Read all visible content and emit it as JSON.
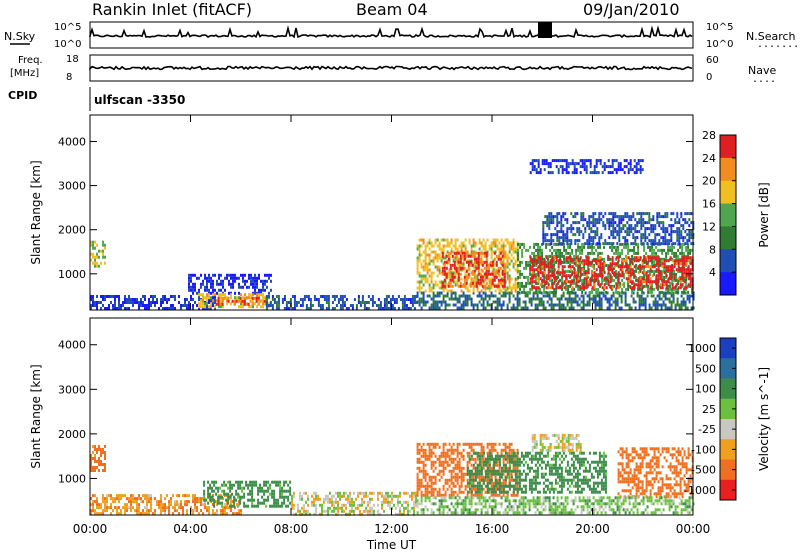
{
  "header": {
    "site": "Rankin Inlet (fitACF)",
    "beam": "Beam 04",
    "date": "09/Jan/2010"
  },
  "top_panels": {
    "nsky_label": "N.Sky",
    "nsearch_label": "N.Search",
    "nsearch_dots": "........",
    "counts_ticks_left": [
      "10^5",
      "10^0"
    ],
    "counts_ticks_right": [
      "10^5",
      "10^0"
    ],
    "freq_label_1": "Freq.",
    "freq_label_2": "[MHz]",
    "freq_ticks_left": [
      "18",
      "8"
    ],
    "nave_label": "Nave",
    "nave_dots": "....",
    "nave_ticks_right": [
      "60",
      "0"
    ],
    "cpid_label": "CPID",
    "cpid_value": "ulfscan -3350"
  },
  "chart_data": [
    {
      "type": "heatmap",
      "title": "",
      "xlabel": "Time UT",
      "ylabel": "Slant Range [km]",
      "x_ticks": [
        "00:00",
        "04:00",
        "08:00",
        "12:00",
        "16:00",
        "20:00",
        "00:00"
      ],
      "xlim_hours": [
        0,
        24
      ],
      "y_ticks": [
        "1000",
        "2000",
        "3000",
        "4000"
      ],
      "ylim": [
        180,
        4600
      ],
      "colorbar_label": "Power [dB]",
      "colorbar_ticks": [
        "4",
        "8",
        "12",
        "16",
        "20",
        "24",
        "28"
      ],
      "colorbar_colors": [
        "#1a1aff",
        "#1f4fb4",
        "#2e7d32",
        "#4fa84f",
        "#f0c020",
        "#f08c20",
        "#e02020"
      ],
      "regions": [
        {
          "t0": 0.0,
          "t1": 0.6,
          "r0": 1150,
          "r1": 1750,
          "value": 18
        },
        {
          "t0": 0.0,
          "t1": 5.0,
          "r0": 200,
          "r1": 520,
          "value": 6
        },
        {
          "t0": 3.9,
          "t1": 7.2,
          "r0": 550,
          "r1": 1000,
          "value": 5
        },
        {
          "t0": 4.3,
          "t1": 7.1,
          "r0": 250,
          "r1": 560,
          "value": 20
        },
        {
          "t0": 5.0,
          "t1": 7.0,
          "r0": 300,
          "r1": 480,
          "value": 26
        },
        {
          "t0": 7.0,
          "t1": 13.0,
          "r0": 200,
          "r1": 520,
          "value": 8
        },
        {
          "t0": 13.0,
          "t1": 24.0,
          "r0": 200,
          "r1": 600,
          "value": 10
        },
        {
          "t0": 13.0,
          "t1": 17.0,
          "r0": 600,
          "r1": 1800,
          "value": 20
        },
        {
          "t0": 14.0,
          "t1": 16.5,
          "r0": 700,
          "r1": 1500,
          "value": 27
        },
        {
          "t0": 17.0,
          "t1": 24.0,
          "r0": 600,
          "r1": 1700,
          "value": 14
        },
        {
          "t0": 17.5,
          "t1": 24.0,
          "r0": 700,
          "r1": 1400,
          "value": 28
        },
        {
          "t0": 18.0,
          "t1": 24.0,
          "r0": 1700,
          "r1": 2400,
          "value": 8
        },
        {
          "t0": 17.5,
          "t1": 22.0,
          "r0": 3300,
          "r1": 3600,
          "value": 5
        }
      ]
    },
    {
      "type": "heatmap",
      "title": "",
      "xlabel": "Time UT",
      "ylabel": "Slant Range [km]",
      "x_ticks": [
        "00:00",
        "04:00",
        "08:00",
        "12:00",
        "16:00",
        "20:00",
        "00:00"
      ],
      "xlim_hours": [
        0,
        24
      ],
      "y_ticks": [
        "1000",
        "2000",
        "3000",
        "4000"
      ],
      "ylim": [
        180,
        4600
      ],
      "colorbar_label": "Velocity [m s^-1]",
      "colorbar_ticks": [
        "1000",
        "500",
        "100",
        "25",
        "-25",
        "-100",
        "-500",
        "-1000"
      ],
      "colorbar_colors": [
        "#1a3fbf",
        "#2b6f9f",
        "#3c8c4a",
        "#6cc040",
        "#c8c8c0",
        "#f0a020",
        "#f07020",
        "#e82020"
      ],
      "regions": [
        {
          "t0": 0.0,
          "t1": 0.6,
          "r0": 1150,
          "r1": 1750,
          "value": -150
        },
        {
          "t0": 0.0,
          "t1": 6.0,
          "r0": 200,
          "r1": 650,
          "value": -80
        },
        {
          "t0": 4.5,
          "t1": 8.0,
          "r0": 400,
          "r1": 950,
          "value": 150
        },
        {
          "t0": 8.0,
          "t1": 13.0,
          "r0": 200,
          "r1": 700,
          "value": 0
        },
        {
          "t0": 13.0,
          "t1": 17.0,
          "r0": 600,
          "r1": 1800,
          "value": -200
        },
        {
          "t0": 15.0,
          "t1": 20.5,
          "r0": 700,
          "r1": 1600,
          "value": 150
        },
        {
          "t0": 17.5,
          "t1": 19.5,
          "r0": 1600,
          "r1": 2000,
          "value": 0
        },
        {
          "t0": 21.0,
          "t1": 24.0,
          "r0": 600,
          "r1": 1700,
          "value": -200
        },
        {
          "t0": 13.0,
          "t1": 24.0,
          "r0": 200,
          "r1": 600,
          "value": 60
        }
      ]
    }
  ]
}
